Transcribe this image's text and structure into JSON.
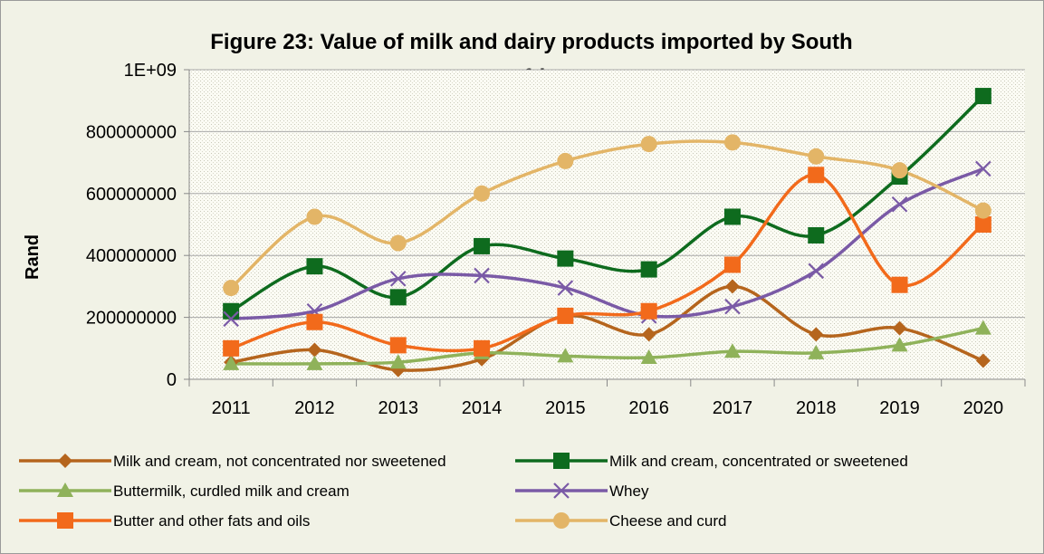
{
  "chart_data": {
    "type": "line",
    "title_line1": "Figure 23: Value of milk and dairy products imported by South",
    "title_line2": "Africa",
    "xlabel": "",
    "ylabel": "Rand",
    "categories": [
      "2011",
      "2012",
      "2013",
      "2014",
      "2015",
      "2016",
      "2017",
      "2018",
      "2019",
      "2020"
    ],
    "ylim": [
      0,
      1000000000
    ],
    "yticks": [
      0,
      200000000,
      400000000,
      600000000,
      800000000,
      1000000000
    ],
    "ytick_labels": [
      "0",
      "200000000",
      "400000000",
      "600000000",
      "800000000",
      "1E+09"
    ],
    "grid": true,
    "legend_position": "bottom",
    "series": [
      {
        "name": "Milk and cream, not concentrated nor sweetened",
        "color": "#b5651d",
        "marker": "diamond",
        "values": [
          55000000,
          95000000,
          30000000,
          65000000,
          205000000,
          145000000,
          300000000,
          145000000,
          165000000,
          60000000
        ]
      },
      {
        "name": "Milk and cream, concentrated or sweetened",
        "color": "#0e6b1e",
        "marker": "square",
        "values": [
          220000000,
          365000000,
          265000000,
          430000000,
          390000000,
          355000000,
          525000000,
          465000000,
          655000000,
          915000000
        ]
      },
      {
        "name": "Buttermilk, curdled milk and cream",
        "color": "#8fb25a",
        "marker": "triangle",
        "values": [
          50000000,
          50000000,
          55000000,
          85000000,
          75000000,
          70000000,
          90000000,
          85000000,
          110000000,
          165000000
        ]
      },
      {
        "name": "Whey",
        "color": "#7a5aa6",
        "marker": "x",
        "values": [
          195000000,
          220000000,
          325000000,
          335000000,
          295000000,
          205000000,
          235000000,
          350000000,
          565000000,
          680000000
        ]
      },
      {
        "name": "Butter and other fats and oils",
        "color": "#f26a1b",
        "marker": "square",
        "values": [
          100000000,
          185000000,
          110000000,
          100000000,
          205000000,
          220000000,
          370000000,
          660000000,
          305000000,
          500000000
        ]
      },
      {
        "name": "Cheese and curd",
        "color": "#e3b567",
        "marker": "circle",
        "values": [
          295000000,
          525000000,
          440000000,
          600000000,
          705000000,
          760000000,
          765000000,
          720000000,
          675000000,
          545000000
        ]
      }
    ]
  }
}
